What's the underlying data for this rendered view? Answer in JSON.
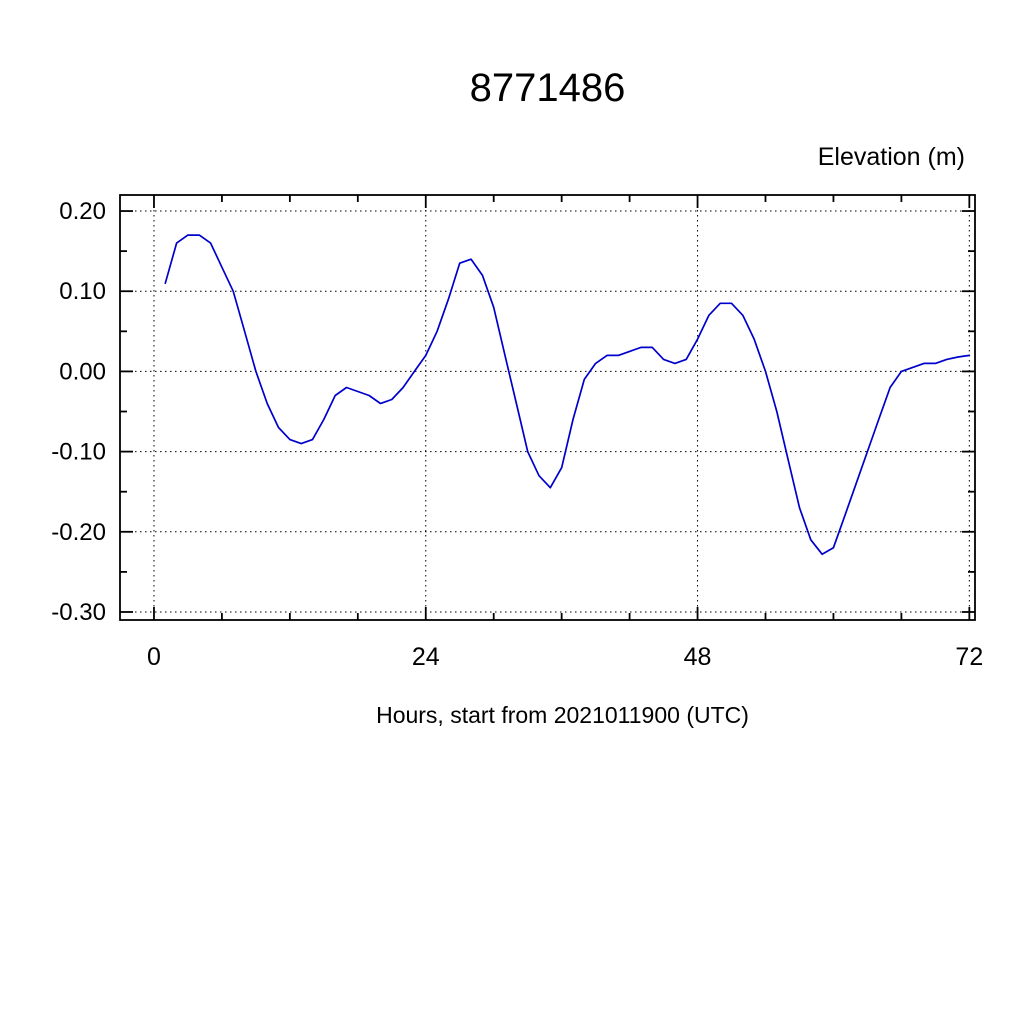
{
  "chart_data": {
    "type": "line",
    "title": "8771486",
    "xlabel": "Hours, start from 2021011900 (UTC)",
    "ylabel": "Elevation (m)",
    "xlim": [
      -3,
      72.5
    ],
    "ylim": [
      -0.31,
      0.22
    ],
    "xticks": [
      {
        "value": 0,
        "label": "0"
      },
      {
        "value": 24,
        "label": "24"
      },
      {
        "value": 48,
        "label": "48"
      },
      {
        "value": 72,
        "label": "72"
      }
    ],
    "xticks_minor": [
      6,
      12,
      18,
      30,
      36,
      42,
      54,
      60,
      66
    ],
    "yticks": [
      {
        "value": 0.2,
        "label": "0.20"
      },
      {
        "value": 0.1,
        "label": "0.10"
      },
      {
        "value": 0.0,
        "label": "0.00"
      },
      {
        "value": -0.1,
        "label": "-0.10"
      },
      {
        "value": -0.2,
        "label": "-0.20"
      },
      {
        "value": -0.3,
        "label": "-0.30"
      }
    ],
    "yticks_minor": [
      0.15,
      0.05,
      -0.05,
      -0.15,
      -0.25
    ],
    "grid": true,
    "legend": "none",
    "line_color": "#0000cc",
    "frame_color": "#000000",
    "series": [
      {
        "name": "elevation",
        "x": [
          1,
          2,
          3,
          4,
          5,
          6,
          7,
          8,
          9,
          10,
          11,
          12,
          13,
          14,
          15,
          16,
          17,
          18,
          19,
          20,
          21,
          22,
          23,
          24,
          25,
          26,
          27,
          28,
          29,
          30,
          31,
          32,
          33,
          34,
          35,
          36,
          37,
          38,
          39,
          40,
          41,
          42,
          43,
          44,
          45,
          46,
          47,
          48,
          49,
          50,
          51,
          52,
          53,
          54,
          55,
          56,
          57,
          58,
          59,
          60,
          61,
          62,
          63,
          64,
          65,
          66,
          67,
          68,
          69,
          70,
          71,
          72
        ],
        "y": [
          0.11,
          0.16,
          0.17,
          0.17,
          0.16,
          0.13,
          0.1,
          0.05,
          0.0,
          -0.04,
          -0.07,
          -0.085,
          -0.09,
          -0.085,
          -0.06,
          -0.03,
          -0.02,
          -0.025,
          -0.03,
          -0.04,
          -0.035,
          -0.02,
          0.0,
          0.02,
          0.05,
          0.09,
          0.135,
          0.14,
          0.12,
          0.08,
          0.02,
          -0.04,
          -0.1,
          -0.13,
          -0.145,
          -0.12,
          -0.06,
          -0.01,
          0.01,
          0.02,
          0.02,
          0.025,
          0.03,
          0.03,
          0.015,
          0.01,
          0.015,
          0.04,
          0.07,
          0.085,
          0.085,
          0.07,
          0.04,
          0.0,
          -0.05,
          -0.11,
          -0.17,
          -0.21,
          -0.228,
          -0.22,
          -0.18,
          -0.14,
          -0.1,
          -0.06,
          -0.02,
          0.0,
          0.005,
          0.01,
          0.01,
          0.015,
          0.018,
          0.02
        ]
      }
    ]
  }
}
